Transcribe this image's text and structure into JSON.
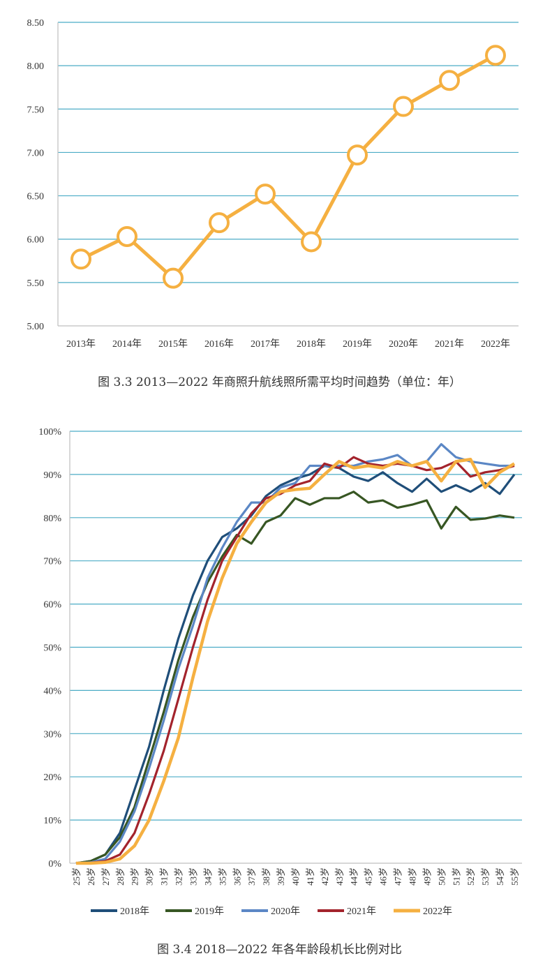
{
  "chart_data": [
    {
      "type": "line",
      "title": "",
      "caption": "图 3.3    2013—2022 年商照升航线照所需平均时间趋势（单位：年）",
      "xlabel": "",
      "ylabel": "",
      "categories": [
        "2013年",
        "2014年",
        "2015年",
        "2016年",
        "2017年",
        "2018年",
        "2019年",
        "2020年",
        "2021年",
        "2022年"
      ],
      "values": [
        5.77,
        6.03,
        5.55,
        6.19,
        6.52,
        5.97,
        6.97,
        7.53,
        7.83,
        8.12
      ],
      "ylim": [
        5.0,
        8.5
      ],
      "yticks": [
        "5.00",
        "5.50",
        "6.00",
        "6.50",
        "7.00",
        "7.50",
        "8.00",
        "8.50"
      ],
      "grid": true,
      "color": "#f5b041"
    },
    {
      "type": "line",
      "title": "",
      "caption": "图 3.4    2018—2022 年各年龄段机长比例对比",
      "xlabel": "",
      "ylabel": "",
      "categories": [
        "25岁",
        "26岁",
        "27岁",
        "28岁",
        "29岁",
        "30岁",
        "31岁",
        "32岁",
        "33岁",
        "34岁",
        "35岁",
        "36岁",
        "37岁",
        "38岁",
        "39岁",
        "40岁",
        "41岁",
        "42岁",
        "43岁",
        "44岁",
        "45岁",
        "46岁",
        "47岁",
        "48岁",
        "49岁",
        "50岁",
        "51岁",
        "52岁",
        "53岁",
        "54岁",
        "55岁"
      ],
      "ylim": [
        0,
        100
      ],
      "yticks": [
        "0%",
        "10%",
        "20%",
        "30%",
        "40%",
        "50%",
        "60%",
        "70%",
        "80%",
        "90%",
        "100%"
      ],
      "grid": true,
      "legend_position": "bottom",
      "series": [
        {
          "name": "2018年",
          "color": "#1f4e79",
          "values": [
            0,
            0.5,
            2,
            7,
            17,
            27,
            40,
            52,
            62,
            70,
            75.5,
            77.5,
            80.5,
            85,
            87.5,
            89,
            90,
            92,
            91.5,
            89.5,
            88.5,
            90.5,
            88,
            86,
            89,
            86,
            87.5,
            86,
            88,
            85.5,
            90
          ]
        },
        {
          "name": "2019年",
          "color": "#375623",
          "values": [
            0,
            0.5,
            2,
            6,
            13,
            24,
            35,
            47,
            57,
            65,
            71,
            76,
            74,
            79,
            80.5,
            84.5,
            83,
            84.5,
            84.5,
            86,
            83.5,
            84,
            82.3,
            83,
            84,
            77.5,
            82.5,
            79.5,
            79.8,
            80.5,
            80
          ]
        },
        {
          "name": "2020年",
          "color": "#5b87c5",
          "values": [
            0,
            0.2,
            1,
            5,
            12,
            22,
            33,
            45,
            55,
            66,
            73,
            79,
            83.5,
            83.5,
            87,
            88,
            92,
            92,
            92,
            92,
            93,
            93.5,
            94.5,
            92,
            93,
            97,
            94,
            93,
            92.5,
            92,
            92
          ]
        },
        {
          "name": "2021年",
          "color": "#a3232c",
          "values": [
            0,
            0.1,
            0.5,
            2,
            7,
            16,
            26,
            38,
            50,
            61,
            70,
            75.5,
            81,
            84.5,
            85.5,
            87.5,
            88.5,
            92.5,
            91.5,
            94,
            92.5,
            92,
            92.5,
            92,
            91,
            91.5,
            93,
            89.5,
            90.5,
            91,
            92
          ]
        },
        {
          "name": "2022年",
          "color": "#f5b041",
          "values": [
            0,
            0,
            0.2,
            1,
            4,
            10,
            19,
            29,
            43,
            56,
            66,
            74,
            79,
            83.5,
            86,
            86.5,
            86.8,
            90,
            93,
            91.5,
            92,
            91.5,
            93,
            92,
            93,
            88.5,
            93,
            93.5,
            87,
            90.5,
            92.5
          ]
        }
      ]
    }
  ]
}
